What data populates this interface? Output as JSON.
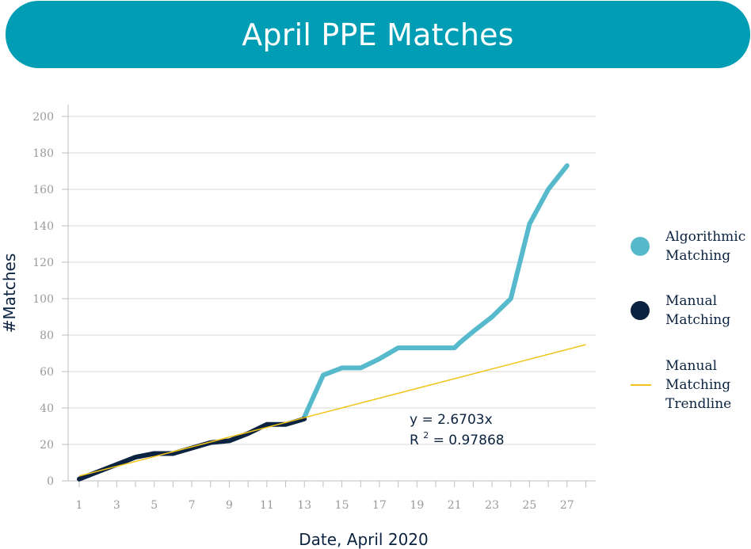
{
  "banner": {
    "title": "April PPE Matches"
  },
  "chart_data": {
    "type": "line",
    "title": "April PPE Matches",
    "xlabel": "Date, April 2020",
    "ylabel": "#Matches",
    "xlim": [
      1,
      28
    ],
    "ylim": [
      0,
      200
    ],
    "x_ticks": [
      1,
      3,
      5,
      7,
      9,
      11,
      13,
      15,
      17,
      19,
      21,
      23,
      25,
      27
    ],
    "y_ticks": [
      0,
      20,
      40,
      60,
      80,
      100,
      120,
      140,
      160,
      180,
      200
    ],
    "grid": "horizontal",
    "legend_position": "right",
    "series": [
      {
        "name": "Algorithmic Matching",
        "color": "#57b9cc",
        "x": [
          13,
          14,
          15,
          16,
          17,
          18,
          19,
          20,
          21,
          21.3,
          22,
          23,
          24,
          25,
          26,
          27
        ],
        "y": [
          35,
          58,
          62,
          62,
          67,
          73,
          73,
          73,
          73,
          76,
          82,
          90,
          100,
          141,
          160,
          173
        ]
      },
      {
        "name": "Manual Matching",
        "color": "#0b2340",
        "x": [
          1,
          2,
          3,
          4,
          5,
          6,
          7,
          8,
          9,
          10,
          11,
          12,
          13
        ],
        "y": [
          1,
          5,
          9,
          13,
          15,
          15,
          18,
          21,
          22,
          26,
          31,
          31,
          34
        ]
      },
      {
        "name": "Manual Matching Trendline",
        "color": "#f0c419",
        "x": [
          1,
          28
        ],
        "y": [
          2.67,
          74.8
        ]
      }
    ],
    "annotations": {
      "equation": "y = 2.6703x",
      "r2_prefix": "R",
      "r2_superscript": "2",
      "r2_value": " = 0.97868"
    }
  },
  "legend": {
    "algorithmic": {
      "line1": "Algorithmic",
      "line2": "Matching",
      "color": "#57b9cc"
    },
    "manual": {
      "line1": "Manual",
      "line2": "Matching",
      "color": "#0b2340"
    },
    "trendline": {
      "line1": "Manual",
      "line2": "Matching",
      "line3": "Trendline",
      "color": "#f0c419"
    }
  }
}
